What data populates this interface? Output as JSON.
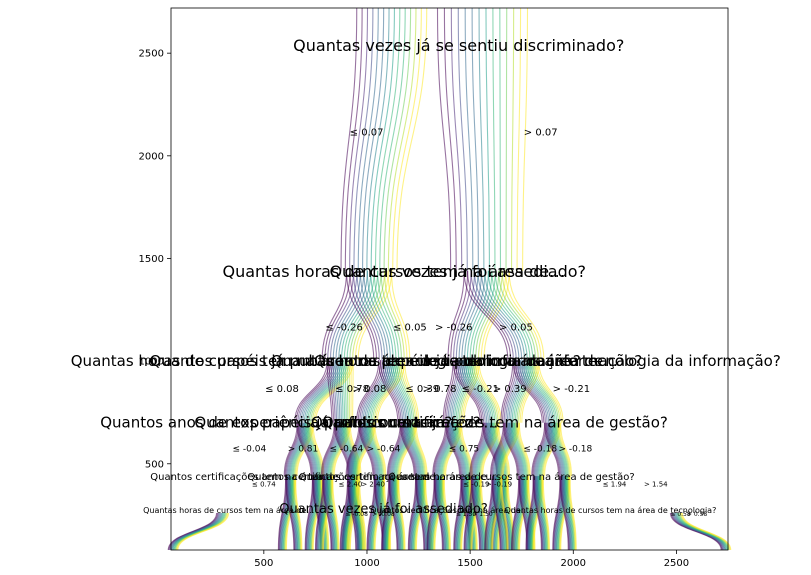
{
  "chart_data": {
    "type": "decision-tree-flow",
    "xlim": [
      50,
      2750
    ],
    "ylim": [
      80,
      2720
    ],
    "x_ticks": [
      500,
      1000,
      1500,
      2000,
      2500
    ],
    "y_ticks": [
      500,
      1000,
      1500,
      2000,
      2500
    ],
    "grid": false,
    "colormap": "viridis",
    "root": {
      "question": "Quantas vezes já se sentiu discriminado?",
      "x": 1445,
      "y": 2540,
      "split": 0.07,
      "left_label": "≤ 0.07",
      "right_label": "> 0.07"
    },
    "level1": [
      {
        "question": "Quantas horas de cursos tem na área de…",
        "x": 1130,
        "y": 1440,
        "left_label": "≤ -0.26",
        "right_label": "> -0.26"
      },
      {
        "question": "Quantas vezes já foi assediado?",
        "x": 1440,
        "y": 1440,
        "left_label": "≤ 0.05",
        "right_label": "> 0.05"
      }
    ],
    "level2": [
      {
        "question": "Quantas horas de cursos tem na área de tecnologia da informação?",
        "x": 800,
        "y": 1005,
        "left_label": "≤ 0.08",
        "right_label": "> 0.08"
      },
      {
        "question": "Quantos papéis já publicou na área de tecnologia da informação?",
        "x": 1140,
        "y": 1005,
        "left_label": "≤ 0.78",
        "right_label": "> 0.78"
      },
      {
        "question": "Quantos papéis já publicou na área de…",
        "x": 1480,
        "y": 1005,
        "left_label": "≤ 0.39",
        "right_label": "> 0.39"
      },
      {
        "question": "Quantas horas de cursos tem na área de tecnologia da informação?",
        "x": 1770,
        "y": 1005,
        "left_label": "≤ -0.21",
        "right_label": "> -0.21"
      }
    ],
    "level3_labels": [
      "≤ -0.04",
      "> 0.81",
      "≤ -0.64",
      "> -0.64",
      "≤ 0.75",
      "≤ -0.18",
      "> -0.18"
    ],
    "level4_labels": [
      "≤ 0.74",
      "≤ 2.40",
      "> 2.40",
      "≤ -0.19",
      "> -0.19",
      "≤ 1.94",
      "> 1.54"
    ],
    "level5_labels": [
      "≤ -0.08",
      "> -0.08",
      "≤ 1.50",
      "> 1.50",
      "≤ 0.58",
      "> 0.58"
    ],
    "level3_questions": [
      "Quantos anos de experiência profissional tem?",
      "Quantos papéis já publicou na área de…",
      "Quantos cursos já fez?",
      "Quantos certificações tem na área de gestão?"
    ],
    "level4_questions": [
      "Quantos certificações tem na área de…",
      "Quantos certificações tem na área de…",
      "Quantos certificações tem na área de…",
      "Quantas horas de cursos tem na área de gestão?"
    ],
    "level5_questions": [
      "Quantas horas de cursos tem na área de…",
      "Quantas vezes já foi assediado?",
      "Quantos certificações tem na área de…",
      "Quantas horas de cursos tem na área de tecnologia?"
    ],
    "flow_lines_per_branch": 14
  }
}
